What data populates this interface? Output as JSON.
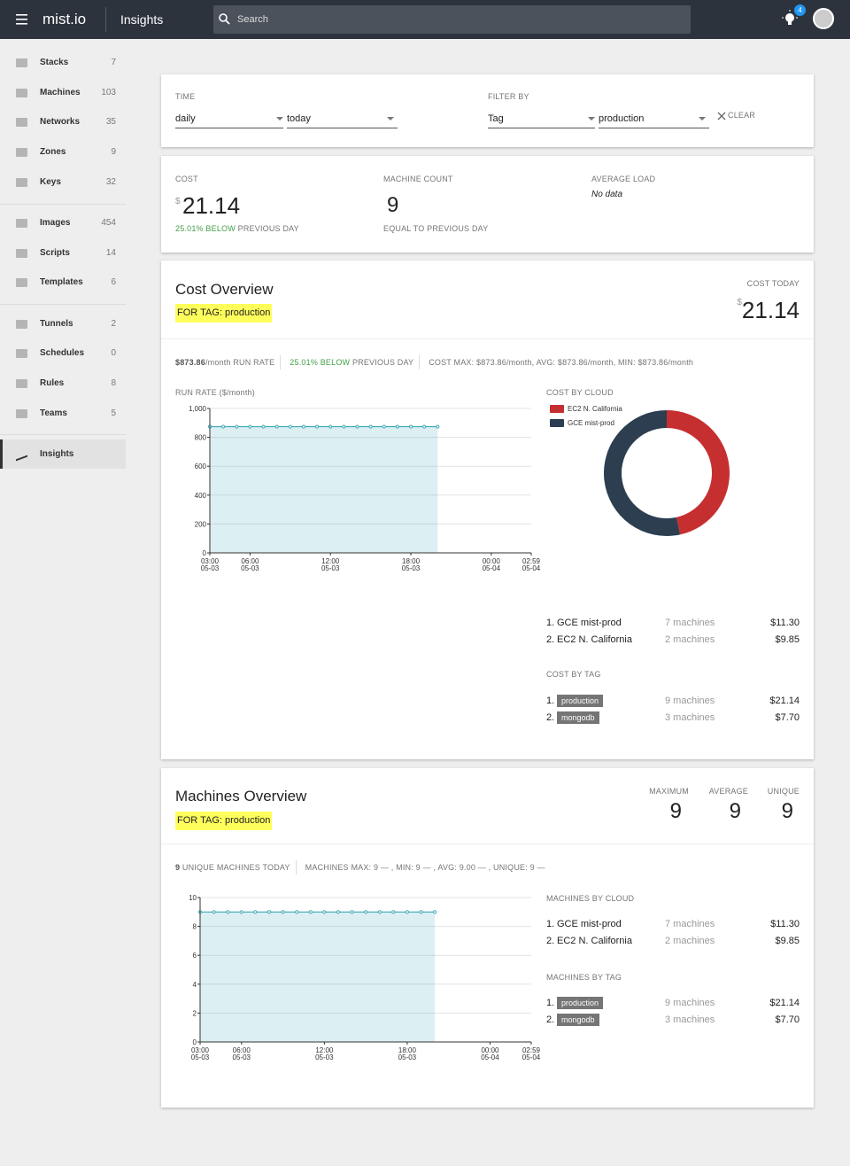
{
  "header": {
    "brand": "mist.io",
    "title": "Insights",
    "search": "Search",
    "notifications": "4"
  },
  "sidebar": {
    "groups": [
      [
        {
          "label": "Stacks",
          "count": "7"
        },
        {
          "label": "Machines",
          "count": "103"
        },
        {
          "label": "Networks",
          "count": "35"
        },
        {
          "label": "Zones",
          "count": "9"
        },
        {
          "label": "Keys",
          "count": "32"
        }
      ],
      [
        {
          "label": "Images",
          "count": "454"
        },
        {
          "label": "Scripts",
          "count": "14"
        },
        {
          "label": "Templates",
          "count": "6"
        }
      ],
      [
        {
          "label": "Tunnels",
          "count": "2"
        },
        {
          "label": "Schedules",
          "count": "0"
        },
        {
          "label": "Rules",
          "count": "8"
        },
        {
          "label": "Teams",
          "count": "5"
        }
      ]
    ],
    "active": "Insights"
  },
  "filters": {
    "time_label": "TIME",
    "period": "daily",
    "range": "today",
    "filter_label": "FILTER BY",
    "key": "Tag",
    "value": "production",
    "clear": "CLEAR"
  },
  "summary": {
    "cost_label": "COST",
    "currency": "$",
    "cost": "21.14",
    "cost_change": "25.01% BELOW",
    "cost_compare": "PREVIOUS DAY",
    "count_label": "MACHINE COUNT",
    "count": "9",
    "count_compare": "EQUAL TO PREVIOUS DAY",
    "load_label": "AVERAGE LOAD",
    "load": "No data"
  },
  "cost_overview": {
    "title": "Cost Overview",
    "tag": "FOR TAG: production",
    "today_label": "COST TODAY",
    "currency": "$",
    "today": "21.14",
    "run_rate": "$873.86",
    "run_rate_suffix": "/month RUN RATE",
    "change": "25.01% BELOW",
    "compare": "PREVIOUS DAY",
    "stats": "COST MAX: $873.86/month, AVG: $873.86/month, MIN: $873.86/month",
    "chart": {
      "type": "area",
      "title": "RUN RATE ($/month)",
      "color": "#3fa9b5",
      "x": [
        "05-03 03:00",
        "05-03 04:00",
        "05-03 05:00",
        "05-03 06:00",
        "05-03 07:00",
        "05-03 08:00",
        "05-03 09:00",
        "05-03 10:00",
        "05-03 11:00",
        "05-03 12:00",
        "05-03 13:00",
        "05-03 14:00",
        "05-03 15:00",
        "05-03 16:00",
        "05-03 17:00",
        "05-03 18:00",
        "05-03 19:00",
        "05-03 20:00"
      ],
      "values": [
        873.86,
        873.86,
        873.86,
        873.86,
        873.86,
        873.86,
        873.86,
        873.86,
        873.86,
        873.86,
        873.86,
        873.86,
        873.86,
        873.86,
        873.86,
        873.86,
        873.86,
        873.86
      ],
      "xlim": [
        "05-03 03:00",
        "05-04 02:59"
      ],
      "xticks": [
        {
          "value": "05-03 03:00",
          "label": [
            "03:00",
            "05-03"
          ]
        },
        {
          "value": "05-03 06:00",
          "label": [
            "06:00",
            "05-03"
          ]
        },
        {
          "value": "05-03 12:00",
          "label": [
            "12:00",
            "05-03"
          ]
        },
        {
          "value": "05-03 18:00",
          "label": [
            "18:00",
            "05-03"
          ]
        },
        {
          "value": "05-04 00:00",
          "label": [
            "00:00",
            "05-04"
          ]
        },
        {
          "value": "05-04 02:59",
          "label": [
            "02:59",
            "05-04"
          ]
        }
      ],
      "ylim": [
        0,
        1000
      ],
      "yticks": [
        0,
        200,
        400,
        600,
        800,
        {
          "value": 1000,
          "label": "1,000"
        }
      ],
      "grid": true
    },
    "cloud_chart": {
      "type": "donut",
      "title": "COST BY CLOUD",
      "categories": [
        "EC2 N. California",
        "GCE mist-prod"
      ],
      "values": [
        9.85,
        11.3
      ],
      "colors": [
        "#c62f2f",
        "#2c3e50"
      ]
    },
    "by_cloud": [
      {
        "rank": "1.",
        "name": "GCE mist-prod",
        "machines": "7 machines",
        "cost": "$11.30"
      },
      {
        "rank": "2.",
        "name": "EC2 N. California",
        "machines": "2 machines",
        "cost": "$9.85"
      }
    ],
    "tag_title": "COST BY TAG",
    "by_tag": [
      {
        "rank": "1.",
        "name": "production",
        "machines": "9 machines",
        "cost": "$21.14"
      },
      {
        "rank": "2.",
        "name": "mongodb",
        "machines": "3 machines",
        "cost": "$7.70"
      }
    ]
  },
  "machines_overview": {
    "title": "Machines Overview",
    "tag": "FOR TAG: production",
    "stats": [
      {
        "label": "MAXIMUM",
        "value": "9"
      },
      {
        "label": "AVERAGE",
        "value": "9"
      },
      {
        "label": "UNIQUE",
        "value": "9"
      }
    ],
    "unique_count": "9",
    "unique_text": "UNIQUE MACHINES TODAY",
    "summary": "MACHINES MAX: 9 — , MIN: 9 — , AVG: 9.00 — , UNIQUE: 9 —",
    "chart": {
      "type": "area",
      "color": "#3fa9b5",
      "x": [
        "05-03 03:00",
        "05-03 04:00",
        "05-03 05:00",
        "05-03 06:00",
        "05-03 07:00",
        "05-03 08:00",
        "05-03 09:00",
        "05-03 10:00",
        "05-03 11:00",
        "05-03 12:00",
        "05-03 13:00",
        "05-03 14:00",
        "05-03 15:00",
        "05-03 16:00",
        "05-03 17:00",
        "05-03 18:00",
        "05-03 19:00",
        "05-03 20:00"
      ],
      "values": [
        9,
        9,
        9,
        9,
        9,
        9,
        9,
        9,
        9,
        9,
        9,
        9,
        9,
        9,
        9,
        9,
        9,
        9
      ],
      "xlim": [
        "05-03 03:00",
        "05-04 02:59"
      ],
      "xticks": [
        {
          "value": "05-03 03:00",
          "label": [
            "03:00",
            "05-03"
          ]
        },
        {
          "value": "05-03 06:00",
          "label": [
            "06:00",
            "05-03"
          ]
        },
        {
          "value": "05-03 12:00",
          "label": [
            "12:00",
            "05-03"
          ]
        },
        {
          "value": "05-03 18:00",
          "label": [
            "18:00",
            "05-03"
          ]
        },
        {
          "value": "05-04 00:00",
          "label": [
            "00:00",
            "05-04"
          ]
        },
        {
          "value": "05-04 02:59",
          "label": [
            "02:59",
            "05-04"
          ]
        }
      ],
      "ylim": [
        0,
        10
      ],
      "yticks": [
        0,
        2,
        4,
        6,
        8,
        10
      ],
      "grid": true
    },
    "cloud_title": "MACHINES BY CLOUD",
    "by_cloud": [
      {
        "rank": "1.",
        "name": "GCE mist-prod",
        "machines": "7 machines",
        "cost": "$11.30"
      },
      {
        "rank": "2.",
        "name": "EC2 N. California",
        "machines": "2 machines",
        "cost": "$9.85"
      }
    ],
    "tag_title": "MACHINES BY TAG",
    "by_tag": [
      {
        "rank": "1.",
        "name": "production",
        "machines": "9 machines",
        "cost": "$21.14"
      },
      {
        "rank": "2.",
        "name": "mongodb",
        "machines": "3 machines",
        "cost": "$7.70"
      }
    ]
  }
}
